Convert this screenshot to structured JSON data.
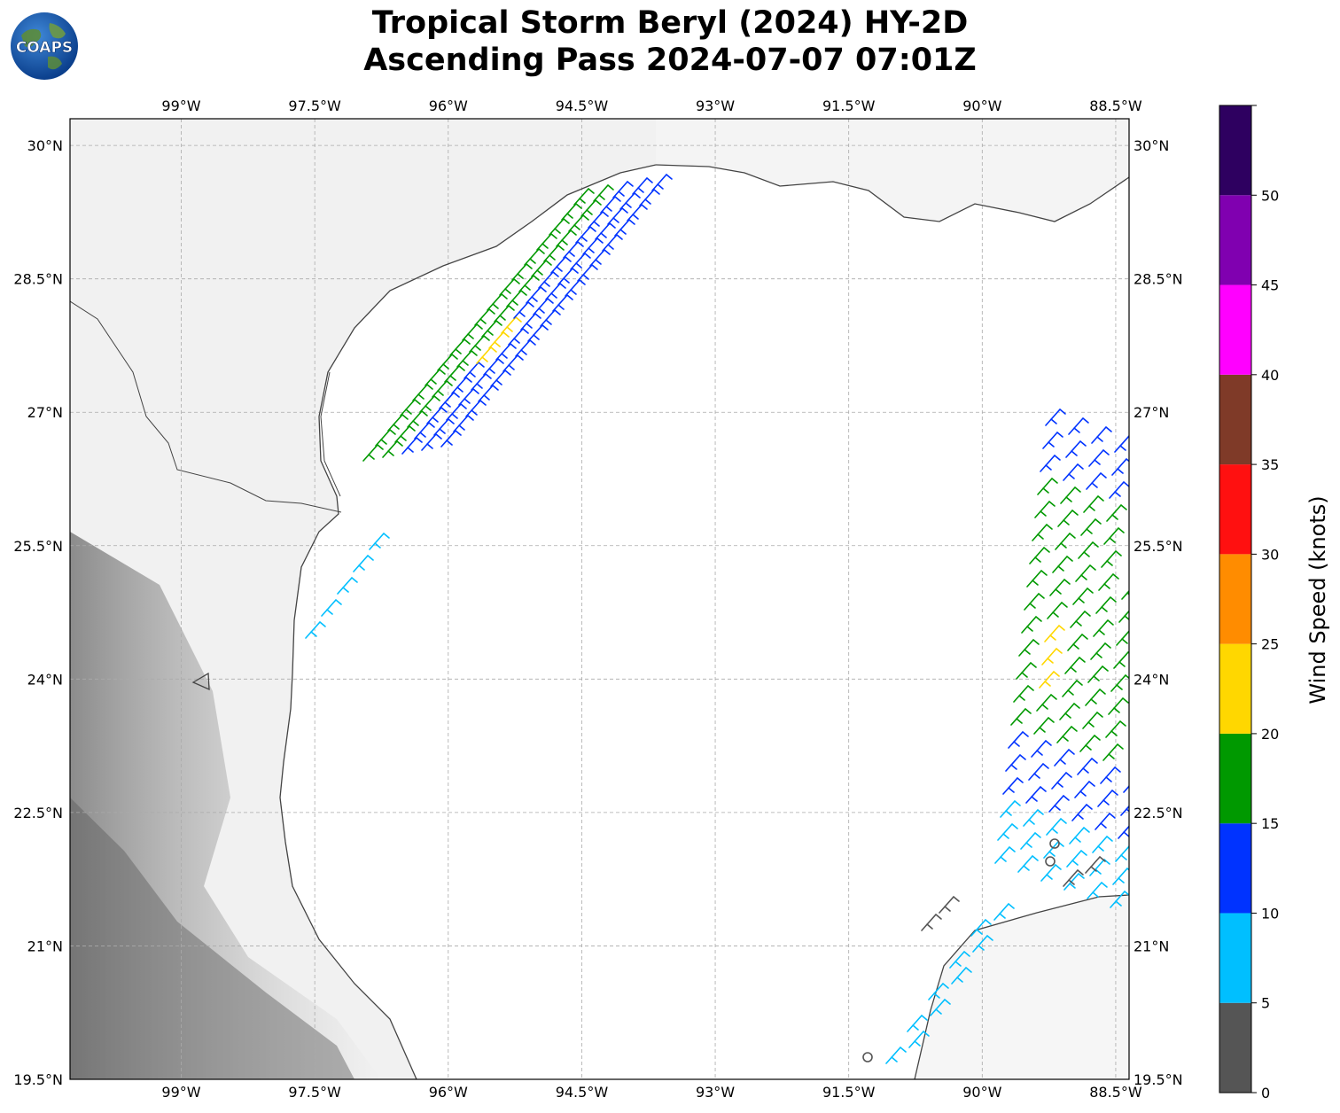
{
  "title": {
    "line1": "Tropical Storm Beryl (2024) HY-2D",
    "line2": "Ascending Pass 2024-07-07 07:01Z"
  },
  "logo": {
    "text": "COAPS",
    "icon": "globe-logo-icon"
  },
  "map": {
    "lon_range": [
      -100.25,
      -88.35
    ],
    "lat_range": [
      19.5,
      30.3
    ],
    "lon_ticks": [
      "99°W",
      "97.5°W",
      "96°W",
      "94.5°W",
      "93°W",
      "91.5°W",
      "90°W",
      "88.5°W"
    ],
    "lat_ticks": [
      "30°N",
      "28.5°N",
      "27°N",
      "25.5°N",
      "24°N",
      "22.5°N",
      "21°N",
      "19.5°N"
    ],
    "grid": true,
    "coastline_color": "#444444",
    "terrain_shading": "grayscale, darker over western high terrain"
  },
  "colorbar": {
    "label": "Wind Speed (knots)",
    "ticks": [
      "0",
      "5",
      "10",
      "15",
      "20",
      "25",
      "30",
      "35",
      "40",
      "45",
      "50"
    ],
    "colors": [
      "#555555",
      "#00bfff",
      "#0033ff",
      "#009900",
      "#ffd700",
      "#ff8c00",
      "#ff1010",
      "#7f3a28",
      "#ff00ff",
      "#8000b0",
      "#2e0060"
    ]
  }
}
